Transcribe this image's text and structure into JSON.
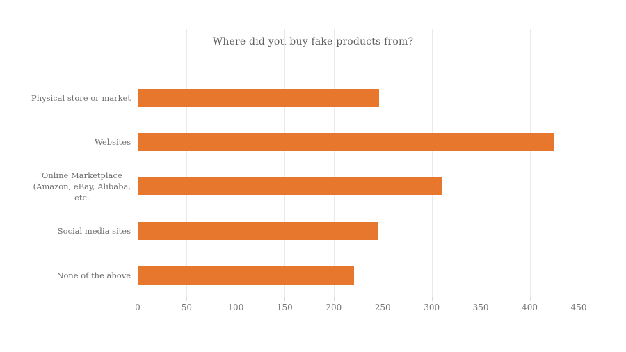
{
  "chart_data": {
    "type": "bar",
    "orientation": "horizontal",
    "title": "Where did you buy fake products from?",
    "categories": [
      "Physical store or market",
      "Websites",
      "Online Marketplace\n(Amazon, eBay,  Alibaba,\netc.",
      "Social media sites",
      "None of the above"
    ],
    "values": [
      246,
      425,
      310,
      245,
      221
    ],
    "xlabel": "",
    "ylabel": "",
    "xlim": [
      0,
      450
    ],
    "x_ticks": [
      0,
      50,
      100,
      150,
      200,
      250,
      300,
      350,
      400,
      450
    ],
    "grid": true,
    "legend": false,
    "colors": {
      "bar": "#e8772e",
      "gridline": "#e9e9e9",
      "tick_mark": "#d9d9d9",
      "title_text": "#5f5f5f",
      "label_text": "#6e6e6e",
      "background": "#ffffff"
    }
  }
}
